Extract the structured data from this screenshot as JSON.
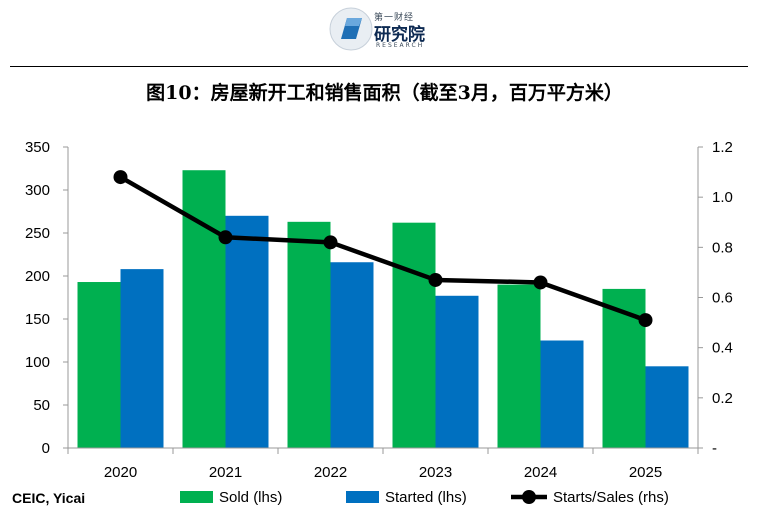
{
  "header": {
    "logo_small": "第一财经",
    "logo_main": "研究院",
    "logo_sub": "RESEARCH",
    "title": "图10：房屋新开工和销售面积（截至3月，百万平方米）"
  },
  "source": "CEIC, Yicai",
  "colors": {
    "sold": "#00b050",
    "started": "#0070c0",
    "ratio": "#000000"
  },
  "chart_data": {
    "type": "bar",
    "categories": [
      "2020",
      "2021",
      "2022",
      "2023",
      "2024",
      "2025"
    ],
    "series": [
      {
        "name": "Sold (lhs)",
        "axis": "left",
        "kind": "bar",
        "values": [
          193,
          323,
          263,
          262,
          190,
          185
        ]
      },
      {
        "name": "Started (lhs)",
        "axis": "left",
        "kind": "bar",
        "values": [
          208,
          270,
          216,
          177,
          125,
          95
        ]
      },
      {
        "name": "Starts/Sales (rhs)",
        "axis": "right",
        "kind": "line",
        "values": [
          1.08,
          0.84,
          0.82,
          0.67,
          0.66,
          0.51
        ]
      }
    ],
    "y_left": {
      "min": 0,
      "max": 350,
      "ticks": [
        "0",
        "50",
        "100",
        "150",
        "200",
        "250",
        "300",
        "350"
      ]
    },
    "y_right": {
      "min": 0,
      "max": 1.2,
      "ticks": [
        "-",
        "0.2",
        "0.4",
        "0.6",
        "0.8",
        "1.0",
        "1.2"
      ]
    },
    "grid": false,
    "legend": "bottom"
  }
}
